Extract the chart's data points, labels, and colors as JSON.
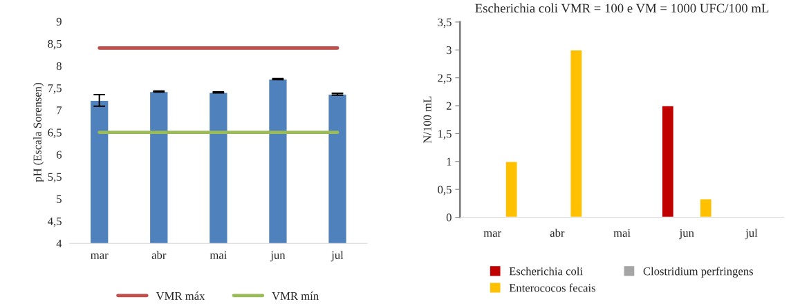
{
  "chart_data": [
    {
      "type": "bar",
      "ylabel": "pH (Escala Sorensen)",
      "categories": [
        "mar",
        "abr",
        "mai",
        "jun",
        "jul"
      ],
      "ylim": [
        4,
        9
      ],
      "yticks": [
        4,
        {
          "value": 4.5,
          "label": "4,5"
        },
        5,
        {
          "value": 5.5,
          "label": "5,5"
        },
        6,
        {
          "value": 6.5,
          "label": "6,5"
        },
        7,
        {
          "value": 7.5,
          "label": "7,5"
        },
        8,
        {
          "value": 8.5,
          "label": "8,5"
        },
        9
      ],
      "grid": false,
      "legend": "bottom",
      "series": [
        {
          "type": "bar",
          "color": "#4f81bd",
          "values": [
            7.22,
            7.42,
            7.4,
            7.7,
            7.36
          ],
          "errors": [
            0.13,
            0.01,
            0.01,
            0.01,
            0.02
          ]
        },
        {
          "type": "line",
          "name": "VMR máx",
          "color": "#c0504d",
          "values": [
            8.4,
            8.4,
            8.4,
            8.4,
            8.4
          ]
        },
        {
          "type": "line",
          "name": "VMR mín",
          "color": "#9bbb59",
          "values": [
            6.5,
            6.5,
            6.5,
            6.5,
            6.5
          ]
        }
      ]
    },
    {
      "type": "bar",
      "title": "Escherichia coli VMR = 100 e VM = 1000 UFC/100 mL",
      "ylabel": "N/100 mL",
      "categories": [
        "mar",
        "abr",
        "mai",
        "jun",
        "jul"
      ],
      "ylim": [
        0,
        3.5
      ],
      "yticks": [
        0,
        {
          "value": 0.5,
          "label": "0,5"
        },
        1,
        {
          "value": 1.5,
          "label": "1,5"
        },
        2,
        {
          "value": 2.5,
          "label": "2,5"
        },
        3,
        {
          "value": 3.5,
          "label": "3,5"
        }
      ],
      "grid": false,
      "legend": "bottom",
      "series": [
        {
          "name": "Escherichia coli",
          "color": "#c00000",
          "values": [
            null,
            null,
            null,
            2,
            null
          ]
        },
        {
          "name": "Clostridium perfringens",
          "color": "#a5a5a5",
          "values": [
            null,
            null,
            null,
            null,
            null
          ]
        },
        {
          "name": "Enterococos fecais",
          "color": "#ffc000",
          "values": [
            1,
            3,
            null,
            0.33,
            null
          ]
        }
      ]
    }
  ]
}
